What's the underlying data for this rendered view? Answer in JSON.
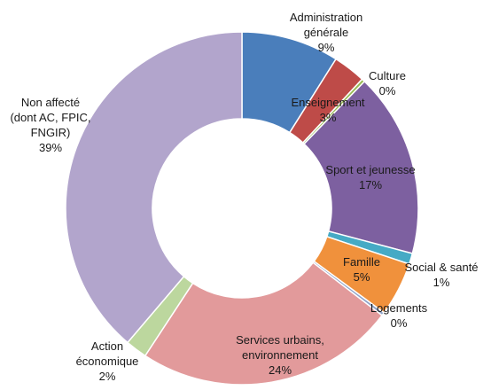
{
  "chart_data": {
    "type": "pie",
    "donut": true,
    "title": "",
    "slices": [
      {
        "label_lines": [
          "Administration",
          "générale"
        ],
        "percent_label": "9%",
        "value": 9,
        "color": "#4a7ebb"
      },
      {
        "label_lines": [
          "Enseignement"
        ],
        "percent_label": "3%",
        "value": 3,
        "color": "#be4b48"
      },
      {
        "label_lines": [
          "Culture"
        ],
        "percent_label": "0%",
        "value": 0.3,
        "color": "#98b954"
      },
      {
        "label_lines": [
          "Sport et jeunesse"
        ],
        "percent_label": "17%",
        "value": 17,
        "color": "#7d60a0"
      },
      {
        "label_lines": [
          "Social & santé"
        ],
        "percent_label": "1%",
        "value": 1,
        "color": "#46aac5"
      },
      {
        "label_lines": [
          "Famille"
        ],
        "percent_label": "5%",
        "value": 5,
        "color": "#f0913c"
      },
      {
        "label_lines": [
          "Logements"
        ],
        "percent_label": "0%",
        "value": 0.3,
        "color": "#8fa3c9"
      },
      {
        "label_lines": [
          "Services urbains,",
          "environnement"
        ],
        "percent_label": "24%",
        "value": 24,
        "color": "#e29a9b"
      },
      {
        "label_lines": [
          "Action",
          "économique"
        ],
        "percent_label": "2%",
        "value": 2,
        "color": "#bcd79e"
      },
      {
        "label_lines": [
          "Non affecté",
          "(dont AC, FPIC,",
          "FNGIR)"
        ],
        "percent_label": "39%",
        "value": 39,
        "color": "#b2a5cc"
      }
    ]
  }
}
